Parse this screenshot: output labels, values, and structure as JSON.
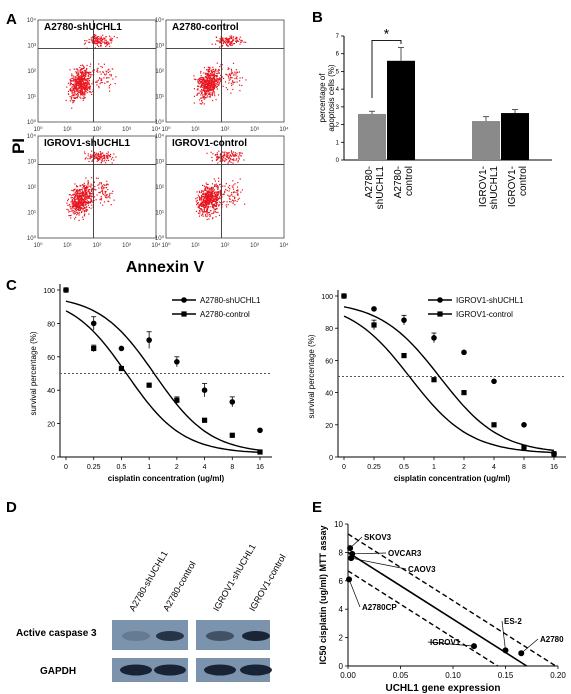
{
  "panel_labels": {
    "A": "A",
    "B": "B",
    "C": "C",
    "D": "D",
    "E": "E"
  },
  "panel_a": {
    "y_label": "PI",
    "x_label": "Annexin V",
    "plot_titles": [
      "A2780-shUCHL1",
      "A2780-control",
      "IGROV1-shUCHL1",
      "IGROV1-control"
    ],
    "axis_ticks": [
      "10⁰",
      "10¹",
      "10²",
      "10³",
      "10⁴"
    ],
    "dot_color": "#e8141e"
  },
  "chart_data": [
    {
      "type": "bar",
      "panel": "B",
      "ylabel": "percentage of apoptosis cells (%)",
      "ylim": [
        0,
        7
      ],
      "yticks": [
        "0",
        "1",
        "2",
        "3",
        "4",
        "5",
        "6",
        "7"
      ],
      "categories": [
        "A2780-shUCHL1",
        "A2780-control",
        "IGROV1-shUCHL1",
        "IGROV1-control"
      ],
      "category_lines": [
        [
          "A2780-",
          "shUCHL1"
        ],
        [
          "A2780-",
          "control"
        ],
        [
          "IGROV1-",
          "shUCHL1"
        ],
        [
          "IGROV1-",
          "control"
        ]
      ],
      "values": [
        2.6,
        5.6,
        2.2,
        2.65
      ],
      "errors": [
        0.15,
        0.75,
        0.25,
        0.2
      ],
      "colors": [
        "#8a8a8a",
        "#000000",
        "#8a8a8a",
        "#000000"
      ],
      "annotation": "*"
    },
    {
      "type": "line",
      "panel": "C-left",
      "xlabel": "cisplatin concentration (ug/ml)",
      "ylabel": "survival percentage (%)",
      "ylim": [
        0,
        100
      ],
      "yticks": [
        "0",
        "20",
        "40",
        "60",
        "80",
        "100"
      ],
      "xticks": [
        "0",
        "0.25",
        "0.5",
        "1",
        "2",
        "4",
        "8",
        "16"
      ],
      "ref_line": 50,
      "series": [
        {
          "name": "A2780-shUCHL1",
          "marker": "circle",
          "x": [
            "0",
            "0.25",
            "0.5",
            "1",
            "2",
            "4",
            "8",
            "16"
          ],
          "y": [
            100,
            80,
            65,
            70,
            57,
            40,
            33,
            16
          ],
          "err": [
            0,
            4,
            0,
            5,
            3,
            4,
            3,
            0
          ]
        },
        {
          "name": "A2780-control",
          "marker": "square",
          "x": [
            "0",
            "0.25",
            "0.5",
            "1",
            "2",
            "4",
            "8",
            "16"
          ],
          "y": [
            100,
            65,
            53,
            43,
            34,
            22,
            13,
            3
          ],
          "err": [
            0,
            2,
            0,
            0,
            2,
            0,
            0,
            0
          ]
        }
      ]
    },
    {
      "type": "line",
      "panel": "C-right",
      "xlabel": "cisplatin concentration (ug/ml)",
      "ylabel": "survival percentage (%)",
      "ylim": [
        0,
        100
      ],
      "yticks": [
        "0",
        "20",
        "40",
        "60",
        "80",
        "100"
      ],
      "xticks": [
        "0",
        "0.25",
        "0.5",
        "1",
        "2",
        "4",
        "8",
        "16"
      ],
      "ref_line": 50,
      "series": [
        {
          "name": "IGROV1-shUCHL1",
          "marker": "circle",
          "x": [
            "0",
            "0.25",
            "0.5",
            "1",
            "2",
            "4",
            "8",
            "16"
          ],
          "y": [
            100,
            92,
            85,
            74,
            65,
            47,
            20,
            2
          ],
          "err": [
            0,
            0,
            3,
            3,
            0,
            0,
            0,
            0
          ]
        },
        {
          "name": "IGROV1-control",
          "marker": "square",
          "x": [
            "0",
            "0.25",
            "0.5",
            "1",
            "2",
            "4",
            "8",
            "16"
          ],
          "y": [
            100,
            82,
            63,
            48,
            40,
            20,
            6,
            2
          ],
          "err": [
            0,
            3,
            0,
            0,
            0,
            0,
            0,
            0
          ]
        }
      ]
    },
    {
      "type": "scatter",
      "panel": "E",
      "xlabel": "UCHL1 gene expression",
      "ylabel": "IC50 cisplatin (ug/ml) MTT assay",
      "xlim": [
        0,
        0.2
      ],
      "ylim": [
        0,
        10
      ],
      "xticks": [
        "0.00",
        "0.05",
        "0.10",
        "0.15",
        "0.20"
      ],
      "yticks": [
        "0",
        "2",
        "4",
        "6",
        "8",
        "10"
      ],
      "points": [
        {
          "label": "SKOV3",
          "x": 0.002,
          "y": 8.3
        },
        {
          "label": "OVCAR3",
          "x": 0.004,
          "y": 7.9
        },
        {
          "label": "CAOV3",
          "x": 0.003,
          "y": 7.6
        },
        {
          "label": "A2780CP",
          "x": 0.001,
          "y": 6.1
        },
        {
          "label": "ES-2",
          "x": 0.15,
          "y": 1.1
        },
        {
          "label": "IGROV1",
          "x": 0.12,
          "y": 1.4
        },
        {
          "label": "A2780",
          "x": 0.165,
          "y": 0.9
        }
      ],
      "fit": {
        "intercept": 8.0,
        "slope": -47
      },
      "band": 1.3
    }
  ],
  "panel_d": {
    "lanes": [
      "A2780-shUCHL1",
      "A2780-control",
      "IGROV1-shUCHL1",
      "IGROV1-control"
    ],
    "rows": [
      "Active caspase 3",
      "GAPDH"
    ],
    "caspase_intensity": [
      0.05,
      0.75,
      0.45,
      0.9
    ],
    "gapdh_intensity": [
      0.9,
      0.9,
      0.9,
      0.9
    ]
  }
}
